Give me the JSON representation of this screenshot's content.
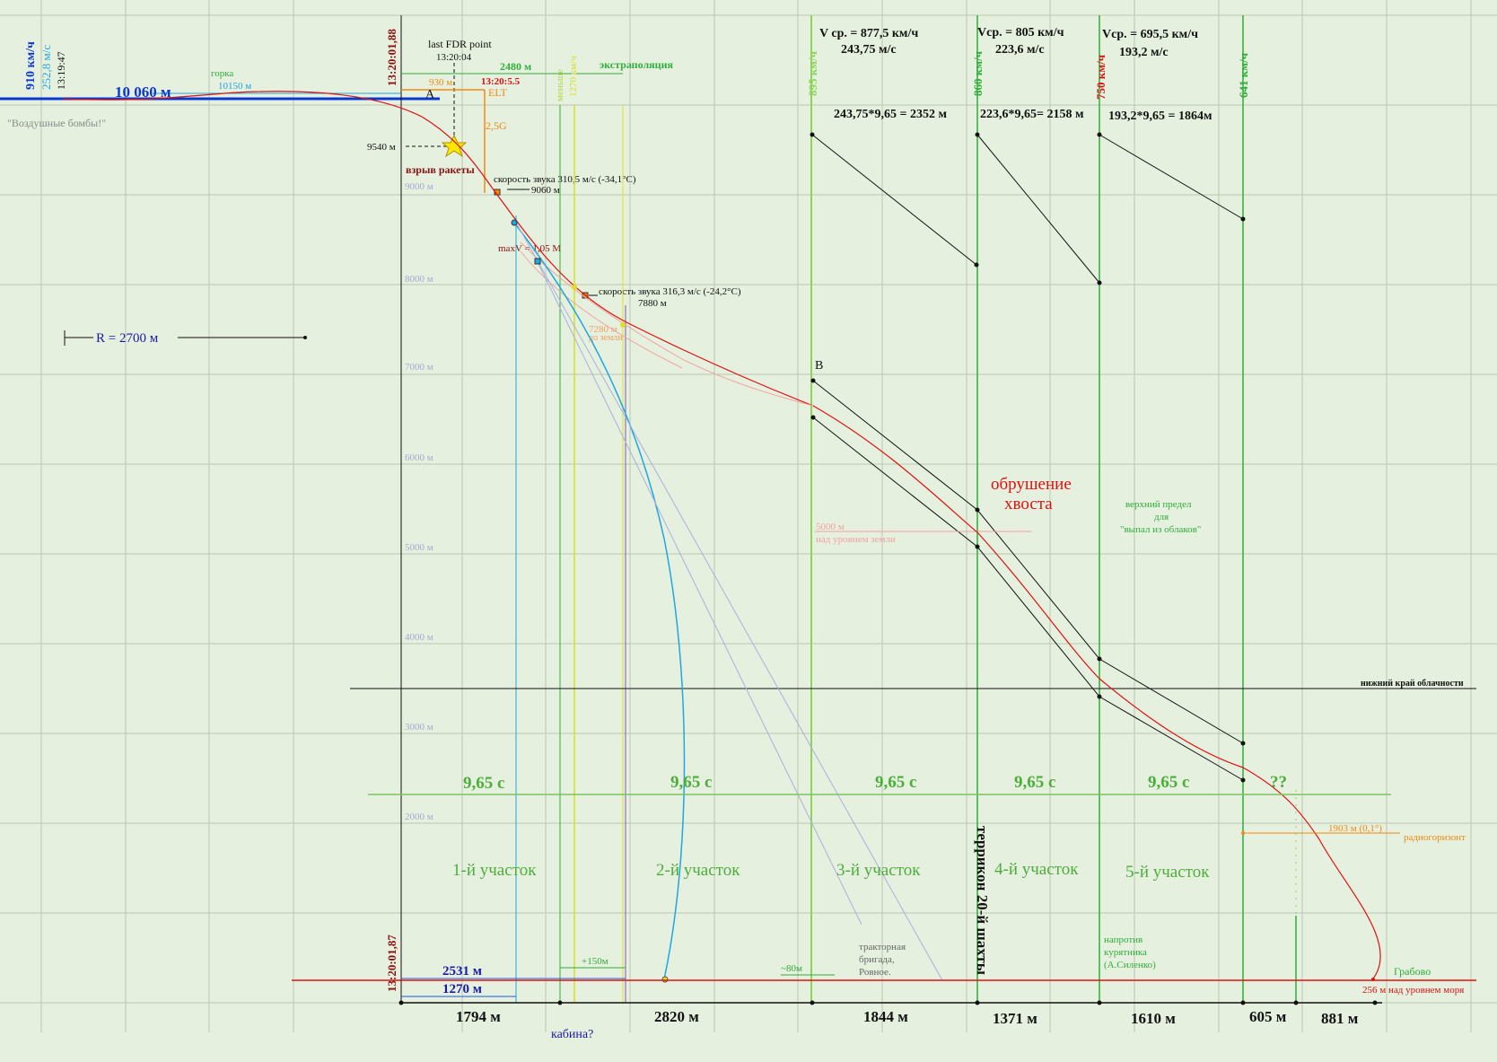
{
  "colors": {
    "background": "#e6f0df",
    "grid": "#b9c8b0",
    "trajectory": "#e01010",
    "blue_line": "#0a37d0",
    "light_blue": "#1ea7e1",
    "green": "#2fae3a",
    "light_green": "#8fd45a",
    "yellow": "#e0e020",
    "orange": "#f08a10",
    "purple": "#7a58c8",
    "black": "#111111"
  },
  "top_left": {
    "speed_kmh": "910 км/ч",
    "speed_ms": "252,8 м/с",
    "time": "13:19:47",
    "altitude": "10 060 м",
    "gorka_label": "горка",
    "gorka_alt": "10150 м",
    "bombs_note": "\"Воздушные бомбы!\"",
    "radius": "R = 2700 м"
  },
  "event_labels": {
    "time_top": "13:20:01,88",
    "time_bottom": "13:20:01,87",
    "fdr_title": "last FDR point",
    "fdr_time": "13:20:04",
    "point_a": "A",
    "point_b": "B",
    "dist_930": "930 м",
    "dist_2480": "2480 м",
    "elt_time": "13:20:5.5",
    "elt": "ELT",
    "g_load": "2,5G",
    "extrapolation": "экстраполяция",
    "explosion_alt": "9540 м",
    "explosion": "взрыв ракеты",
    "sound1": "скорость звука 310,5 м/с (-34,1°C)",
    "sound1_alt": "9060 м",
    "maxv": "maxV = 1,05 M",
    "sound2": "скорость звука 316,3 м/с (-24,2°C)",
    "sound2_alt": "7880 м",
    "alt7280": "7280 м",
    "to_ground": "до земли",
    "less": "меньше",
    "v1270": "1270 км/ч",
    "tail_collapse_1": "обрушение",
    "tail_collapse_2": "хвоста",
    "alt5000": "5000 м",
    "above_ground": "над уровнем земли",
    "upper_limit_1": "верхний предел",
    "upper_limit_2": "для",
    "upper_limit_3": "\"выпал из облаков\"",
    "cloud_base": "нижний край облачности",
    "question": "??",
    "radio_alt": "1903 м (0,1°)",
    "radio_horizon": "радиогоризонт",
    "tractor_1": "тракторная",
    "tractor_2": "бригада,",
    "tractor_3": "Ровное.",
    "opposite_1": "напротив",
    "opposite_2": "курятника",
    "opposite_3": "(А.Силенко)",
    "grabovo": "Грабово",
    "sea_level": "256 м над уровнем моря",
    "terrikon": "террикон 20-й шахты",
    "plus150": "+150м",
    "minus80": "~80м",
    "dist_2531": "2531 м",
    "dist_1270": "1270 м",
    "cabin": "кабина?"
  },
  "altitude_ticks": [
    "9000 м",
    "8000 м",
    "7000 м",
    "6000 м",
    "5000 м",
    "4000 м",
    "3000 м",
    "2000 м"
  ],
  "speed_blocks": [
    {
      "avg": "V ср. =  877,5 км/ч",
      "ms": "243,75 м/с",
      "calc": "243,75*9,65 = 2352 м",
      "vline": "895 км/ч"
    },
    {
      "avg": "Vср. = 805 км/ч",
      "ms": "223,6 м/с",
      "calc": "223,6*9,65= 2158 м",
      "vline": "860 км/ч"
    },
    {
      "avg": "Vср. = 695,5 км/ч",
      "ms": "193,2 м/с",
      "calc": "193,2*9,65 = 1864м",
      "vline": "750 км/ч"
    },
    {
      "vline": "641 км/ч"
    }
  ],
  "intervals": [
    "9,65 с",
    "9,65 с",
    "9,65 с",
    "9,65 с",
    "9,65 с"
  ],
  "sections": [
    "1-й участок",
    "2-й участок",
    "3-й участок",
    "4-й участок",
    "5-й участок"
  ],
  "distances": [
    "1794 м",
    "2820 м",
    "1844 м",
    "1371 м",
    "1610 м",
    "605 м",
    "881 м"
  ]
}
